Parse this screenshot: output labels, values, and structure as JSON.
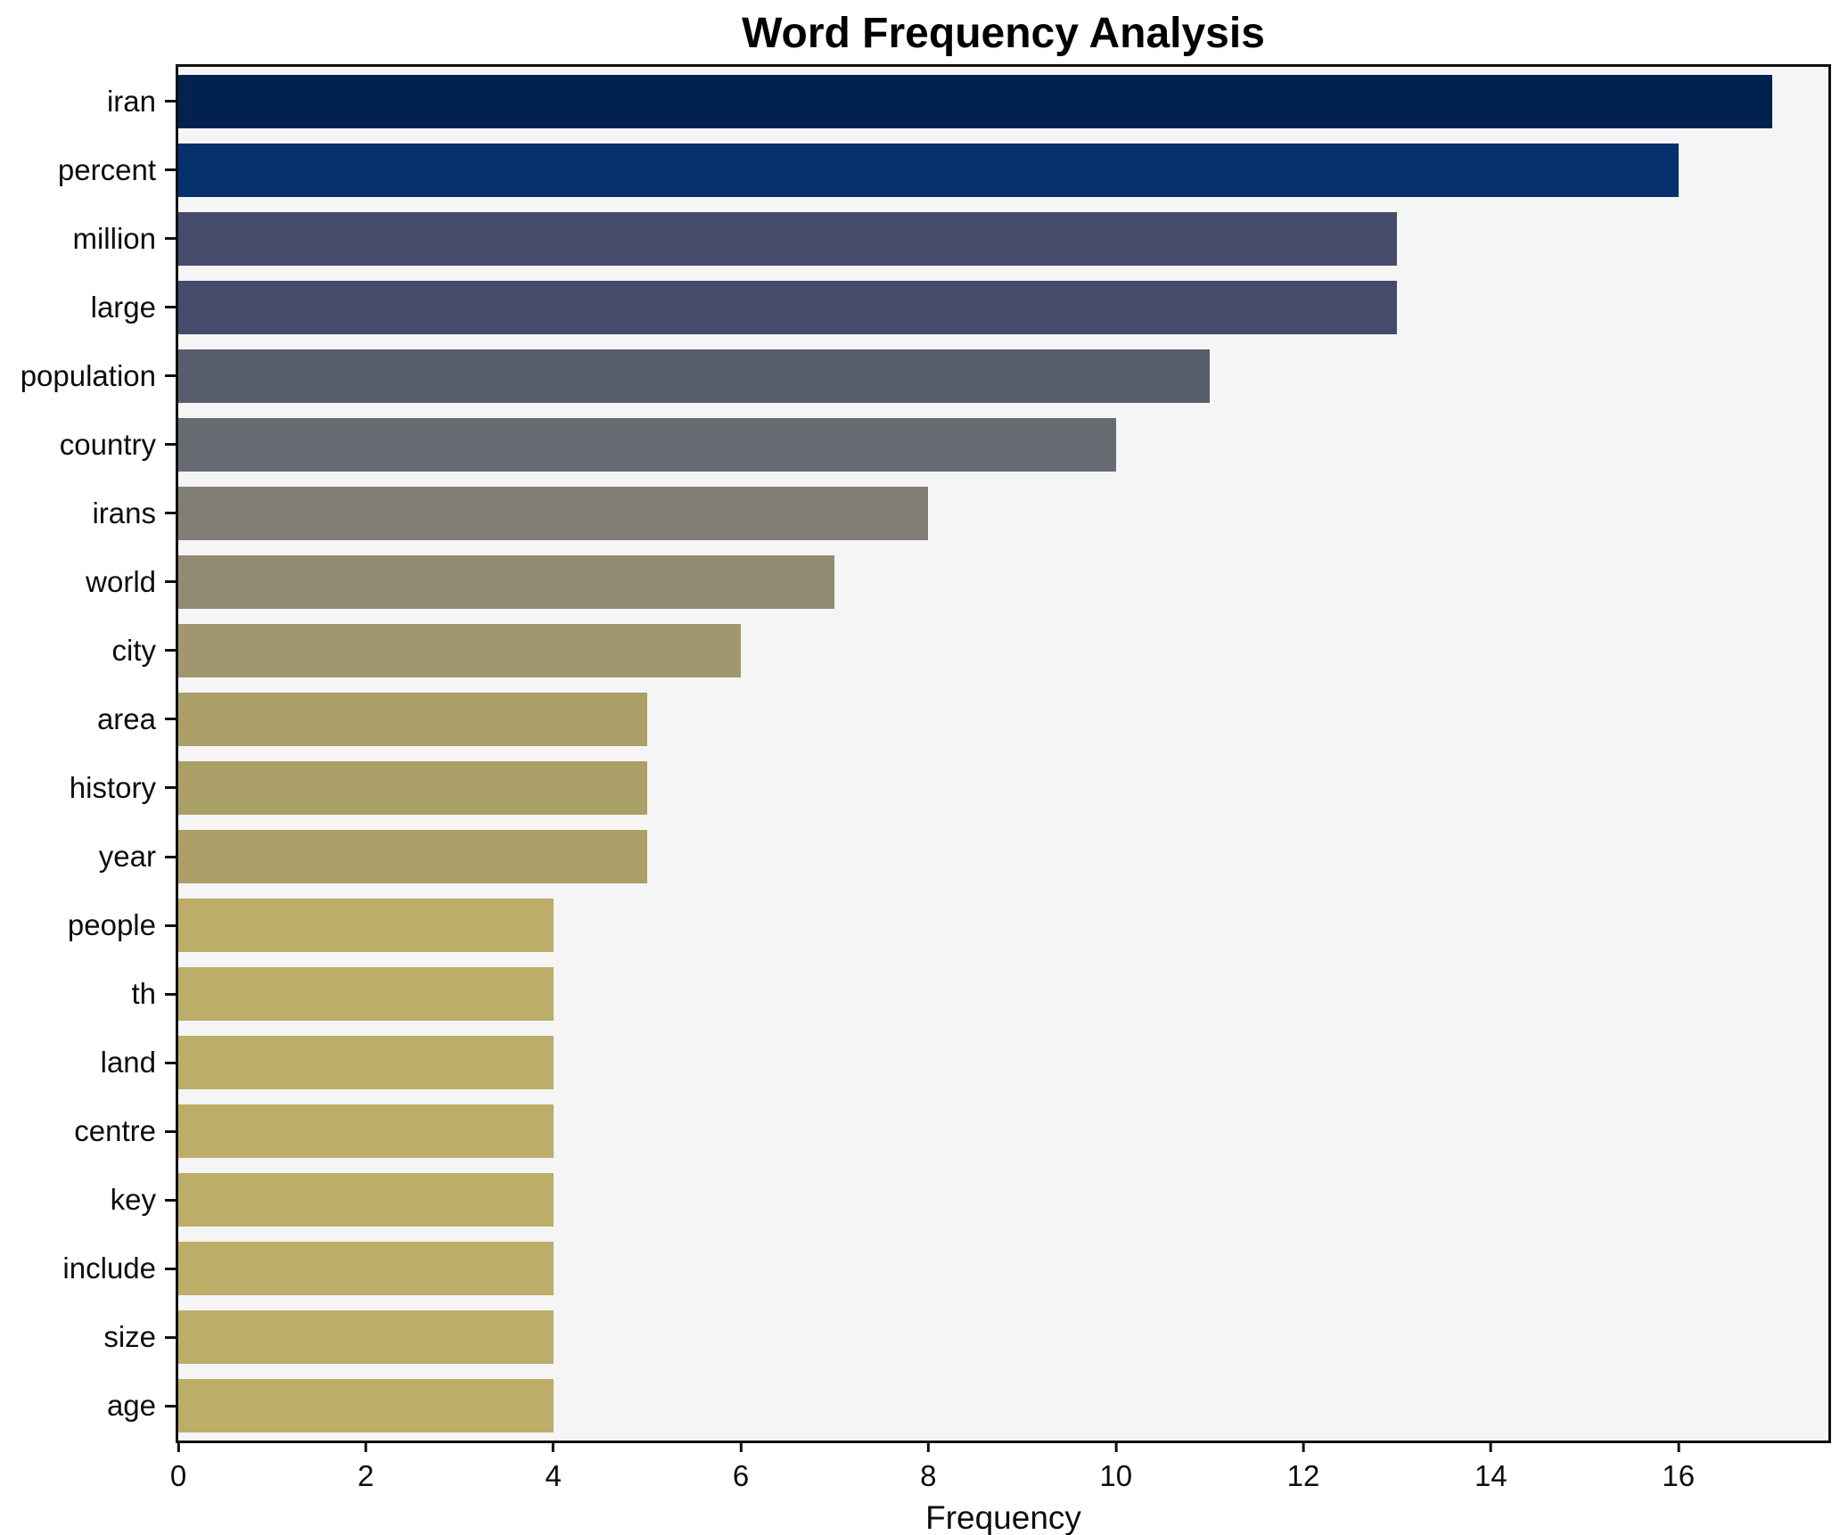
{
  "chart_data": {
    "type": "bar",
    "orientation": "horizontal",
    "title": "Word Frequency Analysis",
    "xlabel": "Frequency",
    "ylabel": "",
    "categories": [
      "iran",
      "percent",
      "million",
      "large",
      "population",
      "country",
      "irans",
      "world",
      "city",
      "area",
      "history",
      "year",
      "people",
      "th",
      "land",
      "centre",
      "key",
      "include",
      "size",
      "age"
    ],
    "values": [
      17,
      16,
      13,
      13,
      11,
      10,
      8,
      7,
      6,
      5,
      5,
      5,
      4,
      4,
      4,
      4,
      4,
      4,
      4,
      4
    ],
    "bar_colors": [
      "#01224e",
      "#05306b",
      "#444b6b",
      "#444b6b",
      "#575d6b",
      "#666a71",
      "#807d75",
      "#928b72",
      "#a0976f",
      "#aaa067",
      "#aaa067",
      "#aaa067",
      "#bcad68",
      "#bcad68",
      "#bcad68",
      "#bcad68",
      "#bcad68",
      "#bcad68",
      "#bcad68",
      "#bcad68"
    ],
    "xlim": [
      0,
      17.6
    ],
    "xticks": [
      0,
      2,
      4,
      6,
      8,
      10,
      12,
      14,
      16
    ],
    "grid": false,
    "legend": null,
    "plot_bg": "#f5f5f6",
    "figure_bg": "#ffffff",
    "spine_color": "#101010",
    "text_color": "#0d0d0d"
  }
}
